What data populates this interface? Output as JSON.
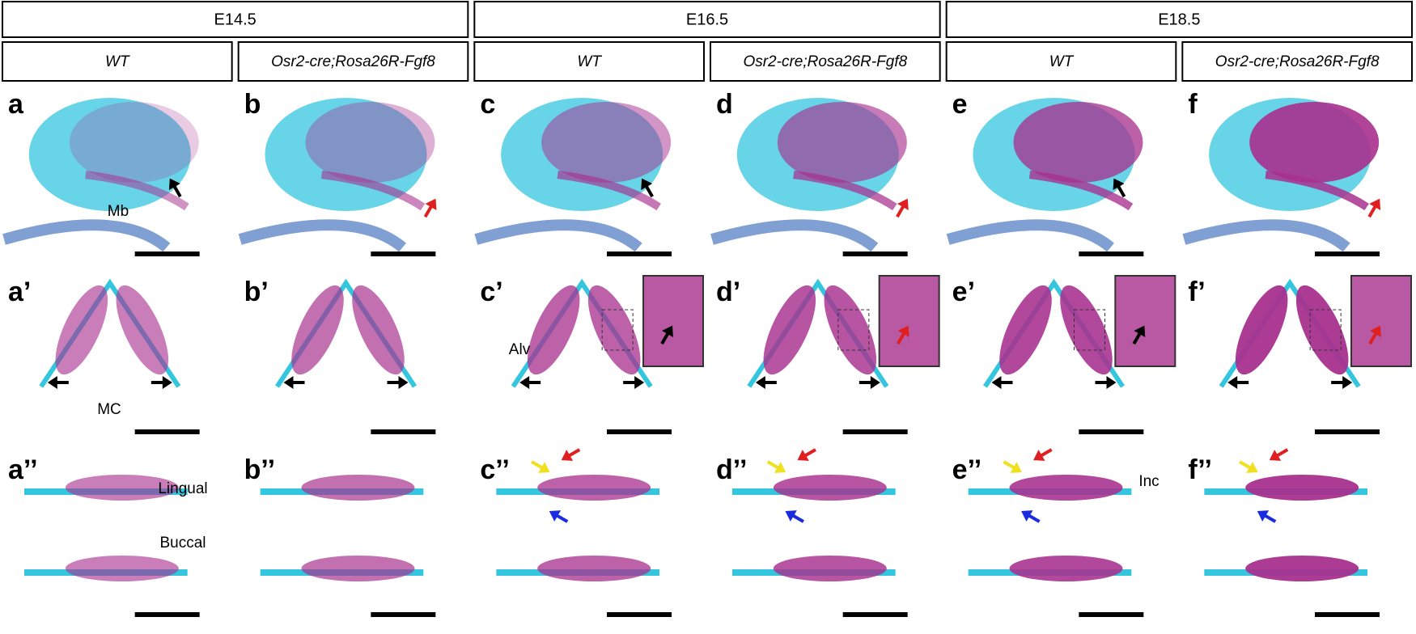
{
  "headers": [
    "E14.5",
    "E16.5",
    "E18.5"
  ],
  "subheaders": [
    "WT",
    "Osr2-cre;Rosa26R-Fgf8",
    "WT",
    "Osr2-cre;Rosa26R-Fgf8",
    "WT",
    "Osr2-cre;Rosa26R-Fgf8"
  ],
  "panels": {
    "rows": [
      [
        {
          "label": "a",
          "notes": [
            "Mb"
          ]
        },
        {
          "label": "b",
          "notes": []
        },
        {
          "label": "c",
          "notes": []
        },
        {
          "label": "d",
          "notes": []
        },
        {
          "label": "e",
          "notes": []
        },
        {
          "label": "f",
          "notes": []
        }
      ],
      [
        {
          "label": "a’",
          "notes": [
            "MC"
          ]
        },
        {
          "label": "b’",
          "notes": []
        },
        {
          "label": "c’",
          "notes": [
            "Alv"
          ]
        },
        {
          "label": "d’",
          "notes": []
        },
        {
          "label": "e’",
          "notes": []
        },
        {
          "label": "f’",
          "notes": []
        }
      ],
      [
        {
          "label": "a’’",
          "notes": [
            "Lingual",
            "Buccal"
          ]
        },
        {
          "label": "b’’",
          "notes": []
        },
        {
          "label": "c’’",
          "notes": []
        },
        {
          "label": "d’’",
          "notes": []
        },
        {
          "label": "e’’",
          "notes": [
            "Inc"
          ]
        },
        {
          "label": "f’’",
          "notes": []
        }
      ]
    ]
  }
}
